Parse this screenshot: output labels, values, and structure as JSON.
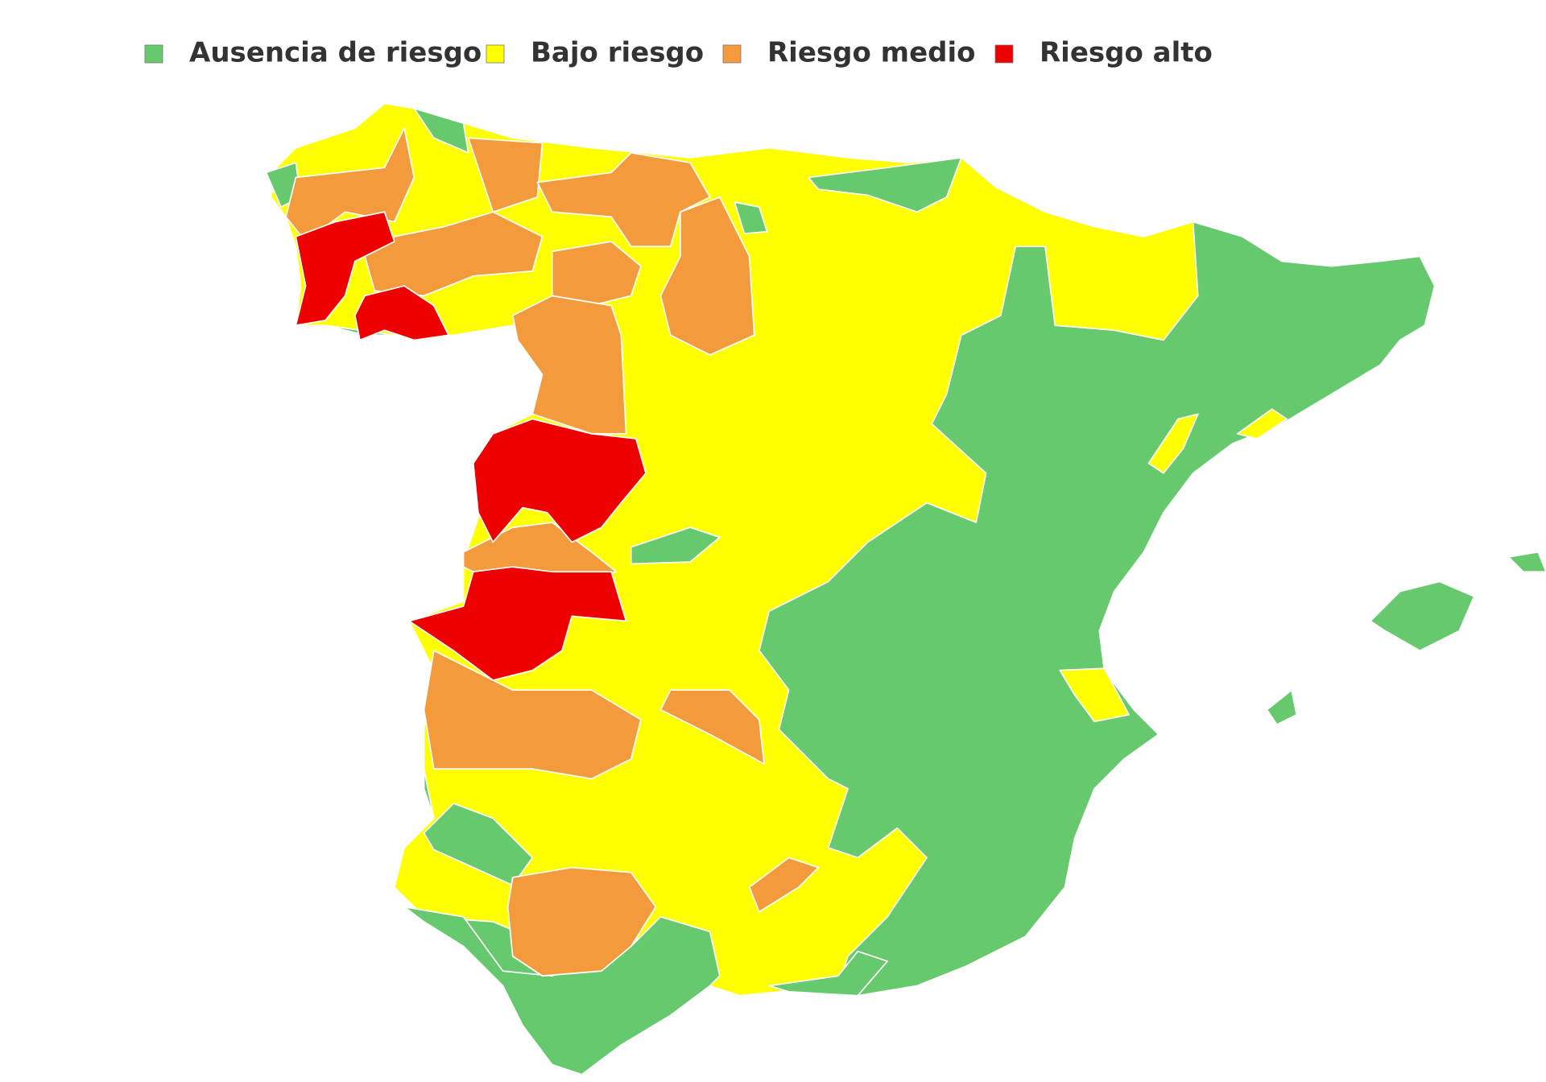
{
  "legend": {
    "items": [
      {
        "label": "Ausencia de riesgo",
        "color": "#66c96e"
      },
      {
        "label": "Bajo riesgo",
        "color": "#ffff00"
      },
      {
        "label": "Riesgo medio",
        "color": "#f39a3c"
      },
      {
        "label": "Riesgo alto",
        "color": "#ee0000"
      }
    ]
  }
}
